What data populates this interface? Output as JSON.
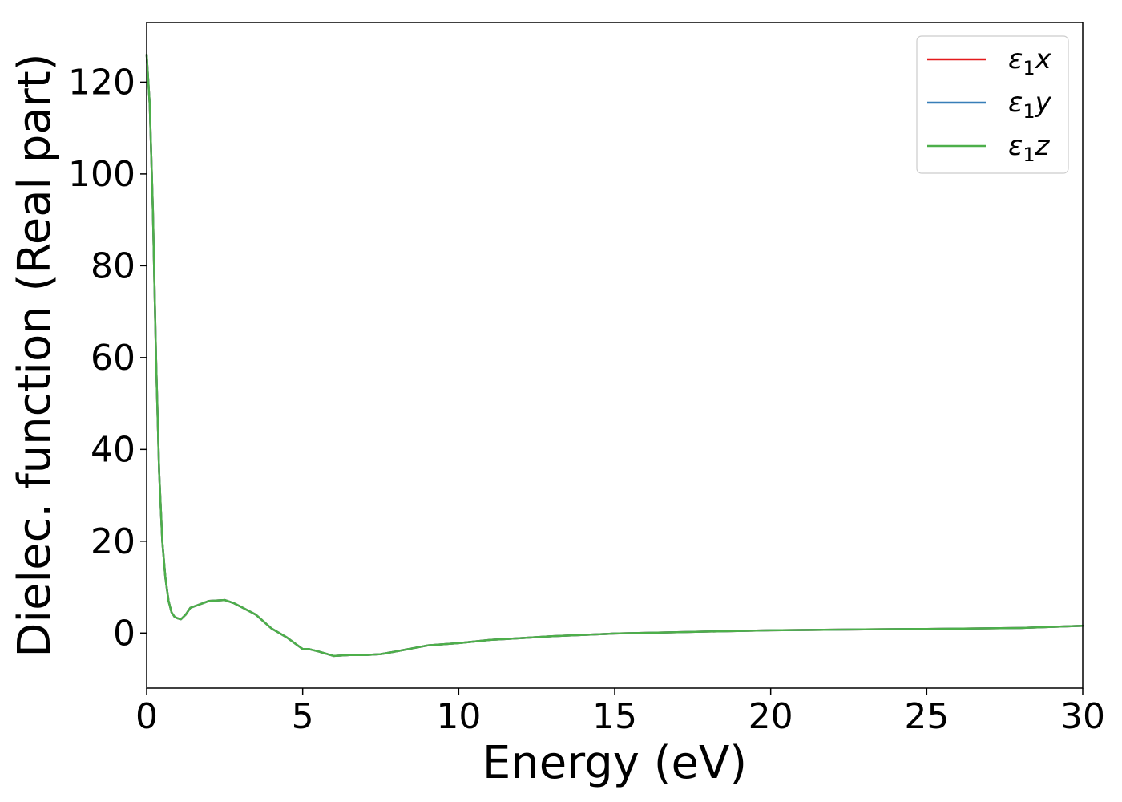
{
  "chart_data": {
    "type": "line",
    "title": "",
    "xlabel": "Energy (eV)",
    "ylabel": "Dielec. function (Real part)",
    "xlim": [
      0,
      30
    ],
    "ylim": [
      -12,
      133
    ],
    "xticks": [
      0,
      5,
      10,
      15,
      20,
      25,
      30
    ],
    "yticks": [
      0,
      20,
      40,
      60,
      80,
      100,
      120
    ],
    "grid": false,
    "legend_position": "top-right",
    "series": [
      {
        "name": "ε1x",
        "legend_base": "ε",
        "legend_sub": "1",
        "legend_var": "x",
        "color": "#e41a1c",
        "x": [
          0,
          0.1,
          0.2,
          0.3,
          0.4,
          0.5,
          0.6,
          0.7,
          0.8,
          0.9,
          1.0,
          1.1,
          1.25,
          1.4,
          1.6,
          2.0,
          2.5,
          2.8,
          3.0,
          3.5,
          4.0,
          4.5,
          4.8,
          5.0,
          5.2,
          5.5,
          6.0,
          6.5,
          7.0,
          7.5,
          8.0,
          9.0,
          10.0,
          11.0,
          12.0,
          13.0,
          14.0,
          15.0,
          17.0,
          20.0,
          23.0,
          25.0,
          28.0,
          30.0
        ],
        "y": [
          126,
          115,
          92,
          60,
          35,
          20,
          12,
          7,
          4.5,
          3.5,
          3.2,
          3.0,
          4.0,
          5.5,
          6.0,
          7.0,
          7.2,
          6.5,
          5.8,
          4.0,
          1.0,
          -1.0,
          -2.5,
          -3.5,
          -3.5,
          -4.0,
          -5.0,
          -4.8,
          -4.8,
          -4.6,
          -4.0,
          -2.7,
          -2.2,
          -1.5,
          -1.1,
          -0.7,
          -0.4,
          -0.1,
          0.2,
          0.6,
          0.8,
          0.9,
          1.1,
          1.6
        ]
      },
      {
        "name": "ε1y",
        "legend_base": "ε",
        "legend_sub": "1",
        "legend_var": "y",
        "color": "#377eb8",
        "x": [
          0,
          0.1,
          0.2,
          0.3,
          0.4,
          0.5,
          0.6,
          0.7,
          0.8,
          0.9,
          1.0,
          1.1,
          1.25,
          1.4,
          1.6,
          2.0,
          2.5,
          2.8,
          3.0,
          3.5,
          4.0,
          4.5,
          4.8,
          5.0,
          5.2,
          5.5,
          6.0,
          6.5,
          7.0,
          7.5,
          8.0,
          9.0,
          10.0,
          11.0,
          12.0,
          13.0,
          14.0,
          15.0,
          17.0,
          20.0,
          23.0,
          25.0,
          28.0,
          30.0
        ],
        "y": [
          126,
          115,
          92,
          60,
          35,
          20,
          12,
          7,
          4.5,
          3.5,
          3.2,
          3.0,
          4.0,
          5.5,
          6.0,
          7.0,
          7.2,
          6.5,
          5.8,
          4.0,
          1.0,
          -1.0,
          -2.5,
          -3.5,
          -3.5,
          -4.0,
          -5.0,
          -4.8,
          -4.8,
          -4.6,
          -4.0,
          -2.7,
          -2.2,
          -1.5,
          -1.1,
          -0.7,
          -0.4,
          -0.1,
          0.2,
          0.6,
          0.8,
          0.9,
          1.1,
          1.6
        ]
      },
      {
        "name": "ε1z",
        "legend_base": "ε",
        "legend_sub": "1",
        "legend_var": "z",
        "color": "#4daf4a",
        "x": [
          0,
          0.1,
          0.2,
          0.3,
          0.4,
          0.5,
          0.6,
          0.7,
          0.8,
          0.9,
          1.0,
          1.1,
          1.25,
          1.4,
          1.6,
          2.0,
          2.5,
          2.8,
          3.0,
          3.5,
          4.0,
          4.5,
          4.8,
          5.0,
          5.2,
          5.5,
          6.0,
          6.5,
          7.0,
          7.5,
          8.0,
          9.0,
          10.0,
          11.0,
          12.0,
          13.0,
          14.0,
          15.0,
          17.0,
          20.0,
          23.0,
          25.0,
          28.0,
          30.0
        ],
        "y": [
          126,
          115,
          92,
          60,
          35,
          20,
          12,
          7,
          4.5,
          3.5,
          3.2,
          3.0,
          4.0,
          5.5,
          6.0,
          7.0,
          7.2,
          6.5,
          5.8,
          4.0,
          1.0,
          -1.0,
          -2.5,
          -3.5,
          -3.5,
          -4.0,
          -5.0,
          -4.8,
          -4.8,
          -4.6,
          -4.0,
          -2.7,
          -2.2,
          -1.5,
          -1.1,
          -0.7,
          -0.4,
          -0.1,
          0.2,
          0.6,
          0.8,
          0.9,
          1.1,
          1.6
        ]
      }
    ]
  }
}
